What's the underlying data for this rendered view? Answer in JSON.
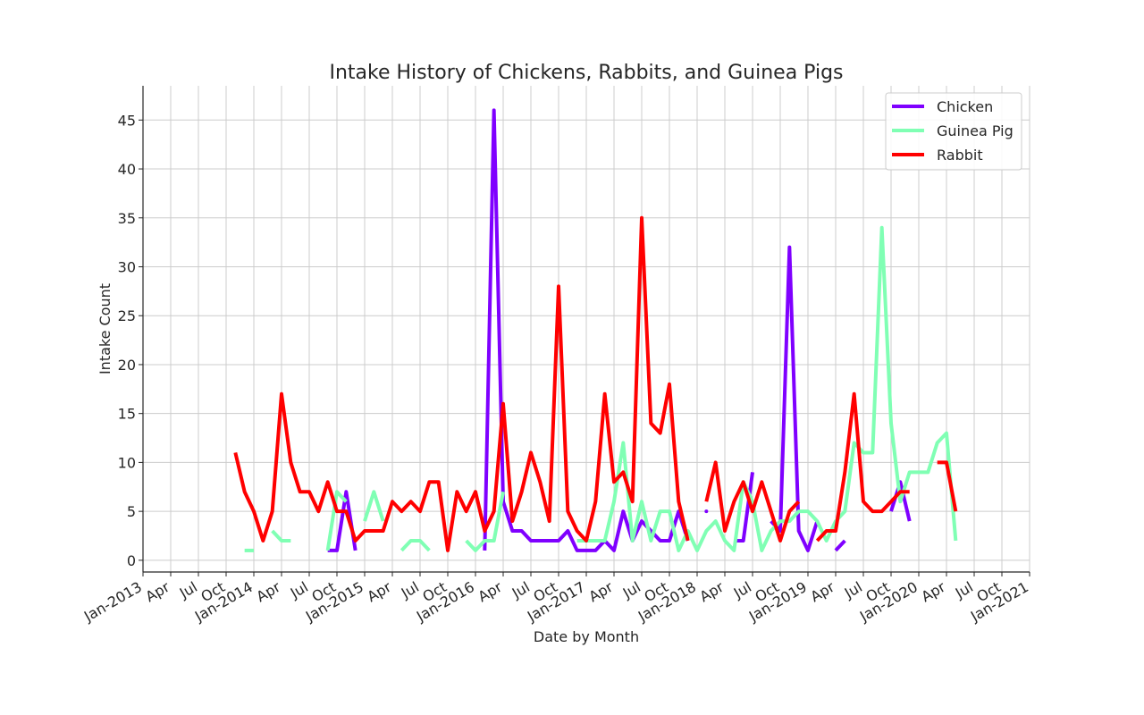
{
  "chart_data": {
    "type": "line",
    "title": "Intake History of Chickens, Rabbits, and Guinea Pigs",
    "xlabel": "Date by Month",
    "ylabel": "Intake Count",
    "x_range": [
      "2013-01",
      "2021-01"
    ],
    "ylim": [
      -1.2,
      48.5
    ],
    "y_ticks": [
      0,
      5,
      10,
      15,
      20,
      25,
      30,
      35,
      40,
      45
    ],
    "x_ticks": [
      {
        "date": "2013-01",
        "label": "Jan-2013"
      },
      {
        "date": "2013-04",
        "label": "Apr"
      },
      {
        "date": "2013-07",
        "label": "Jul"
      },
      {
        "date": "2013-10",
        "label": "Oct"
      },
      {
        "date": "2014-01",
        "label": "Jan-2014"
      },
      {
        "date": "2014-04",
        "label": "Apr"
      },
      {
        "date": "2014-07",
        "label": "Jul"
      },
      {
        "date": "2014-10",
        "label": "Oct"
      },
      {
        "date": "2015-01",
        "label": "Jan-2015"
      },
      {
        "date": "2015-04",
        "label": "Apr"
      },
      {
        "date": "2015-07",
        "label": "Jul"
      },
      {
        "date": "2015-10",
        "label": "Oct"
      },
      {
        "date": "2016-01",
        "label": "Jan-2016"
      },
      {
        "date": "2016-04",
        "label": "Apr"
      },
      {
        "date": "2016-07",
        "label": "Jul"
      },
      {
        "date": "2016-10",
        "label": "Oct"
      },
      {
        "date": "2017-01",
        "label": "Jan-2017"
      },
      {
        "date": "2017-04",
        "label": "Apr"
      },
      {
        "date": "2017-07",
        "label": "Jul"
      },
      {
        "date": "2017-10",
        "label": "Oct"
      },
      {
        "date": "2018-01",
        "label": "Jan-2018"
      },
      {
        "date": "2018-04",
        "label": "Apr"
      },
      {
        "date": "2018-07",
        "label": "Jul"
      },
      {
        "date": "2018-10",
        "label": "Oct"
      },
      {
        "date": "2019-01",
        "label": "Jan-2019"
      },
      {
        "date": "2019-04",
        "label": "Apr"
      },
      {
        "date": "2019-07",
        "label": "Jul"
      },
      {
        "date": "2019-10",
        "label": "Oct"
      },
      {
        "date": "2020-01",
        "label": "Jan-2020"
      },
      {
        "date": "2020-04",
        "label": "Apr"
      },
      {
        "date": "2020-07",
        "label": "Jul"
      },
      {
        "date": "2020-10",
        "label": "Oct"
      },
      {
        "date": "2021-01",
        "label": "Jan-2021"
      }
    ],
    "grid": true,
    "legend_position": "top-right",
    "series": [
      {
        "name": "Chicken",
        "color": "#7f00ff",
        "segments": [
          [
            [
              "2014-09",
              1
            ],
            [
              "2014-10",
              1
            ],
            [
              "2014-11",
              7
            ],
            [
              "2014-12",
              1
            ]
          ],
          [
            [
              "2016-02",
              1
            ],
            [
              "2016-03",
              46
            ],
            [
              "2016-04",
              6
            ],
            [
              "2016-05",
              3
            ],
            [
              "2016-06",
              3
            ],
            [
              "2016-07",
              2
            ],
            [
              "2016-08",
              2
            ],
            [
              "2016-09",
              2
            ],
            [
              "2016-10",
              2
            ],
            [
              "2016-11",
              3
            ],
            [
              "2016-12",
              1
            ],
            [
              "2017-01",
              1
            ],
            [
              "2017-02",
              1
            ],
            [
              "2017-03",
              2
            ],
            [
              "2017-04",
              1
            ],
            [
              "2017-05",
              5
            ],
            [
              "2017-06",
              2
            ],
            [
              "2017-07",
              4
            ],
            [
              "2017-08",
              3
            ],
            [
              "2017-09",
              2
            ],
            [
              "2017-10",
              2
            ],
            [
              "2017-11",
              5
            ],
            [
              "2017-12",
              2
            ]
          ],
          [
            [
              "2018-02",
              5
            ]
          ],
          [
            [
              "2018-05",
              2
            ],
            [
              "2018-06",
              2
            ],
            [
              "2018-07",
              9
            ]
          ],
          [
            [
              "2018-09",
              4
            ],
            [
              "2018-10",
              3
            ],
            [
              "2018-11",
              32
            ],
            [
              "2018-12",
              3
            ],
            [
              "2019-01",
              1
            ],
            [
              "2019-02",
              4
            ]
          ],
          [
            [
              "2019-04",
              1
            ],
            [
              "2019-05",
              2
            ]
          ],
          [
            [
              "2019-10",
              5
            ],
            [
              "2019-11",
              8
            ],
            [
              "2019-12",
              4
            ]
          ]
        ]
      },
      {
        "name": "Guinea Pig",
        "color": "#80ffb4",
        "segments": [
          [
            [
              "2013-12",
              1
            ],
            [
              "2014-01",
              1
            ]
          ],
          [
            [
              "2014-03",
              3
            ],
            [
              "2014-04",
              2
            ],
            [
              "2014-05",
              2
            ]
          ],
          [
            [
              "2014-09",
              1
            ],
            [
              "2014-10",
              7
            ],
            [
              "2014-11",
              6
            ]
          ],
          [
            [
              "2015-01",
              4
            ],
            [
              "2015-02",
              7
            ],
            [
              "2015-03",
              4
            ]
          ],
          [
            [
              "2015-05",
              1
            ],
            [
              "2015-06",
              2
            ],
            [
              "2015-07",
              2
            ],
            [
              "2015-08",
              1
            ]
          ],
          [
            [
              "2015-12",
              2
            ],
            [
              "2016-01",
              1
            ],
            [
              "2016-02",
              2
            ],
            [
              "2016-03",
              2
            ],
            [
              "2016-04",
              7
            ]
          ],
          [
            [
              "2016-12",
              2
            ],
            [
              "2017-01",
              2
            ],
            [
              "2017-02",
              2
            ],
            [
              "2017-03",
              2
            ],
            [
              "2017-04",
              6
            ],
            [
              "2017-05",
              12
            ],
            [
              "2017-06",
              2
            ],
            [
              "2017-07",
              6
            ],
            [
              "2017-08",
              2
            ],
            [
              "2017-09",
              5
            ],
            [
              "2017-10",
              5
            ],
            [
              "2017-11",
              1
            ],
            [
              "2017-12",
              3
            ],
            [
              "2018-01",
              1
            ],
            [
              "2018-02",
              3
            ],
            [
              "2018-03",
              4
            ],
            [
              "2018-04",
              2
            ],
            [
              "2018-05",
              1
            ],
            [
              "2018-06",
              8
            ],
            [
              "2018-07",
              6
            ],
            [
              "2018-08",
              1
            ],
            [
              "2018-09",
              3
            ],
            [
              "2018-10",
              4
            ],
            [
              "2018-11",
              4
            ],
            [
              "2018-12",
              5
            ],
            [
              "2019-01",
              5
            ],
            [
              "2019-02",
              4
            ],
            [
              "2019-03",
              2
            ],
            [
              "2019-04",
              4
            ],
            [
              "2019-05",
              5
            ],
            [
              "2019-06",
              12
            ],
            [
              "2019-07",
              11
            ],
            [
              "2019-08",
              11
            ],
            [
              "2019-09",
              34
            ],
            [
              "2019-10",
              14
            ],
            [
              "2019-11",
              6
            ],
            [
              "2019-12",
              9
            ],
            [
              "2020-01",
              9
            ],
            [
              "2020-02",
              9
            ],
            [
              "2020-03",
              12
            ],
            [
              "2020-04",
              13
            ],
            [
              "2020-05",
              2
            ]
          ]
        ]
      },
      {
        "name": "Rabbit",
        "color": "#ff0000",
        "segments": [
          [
            [
              "2013-11",
              11
            ],
            [
              "2013-12",
              7
            ],
            [
              "2014-01",
              5
            ],
            [
              "2014-02",
              2
            ],
            [
              "2014-03",
              5
            ],
            [
              "2014-04",
              17
            ],
            [
              "2014-05",
              10
            ],
            [
              "2014-06",
              7
            ],
            [
              "2014-07",
              7
            ],
            [
              "2014-08",
              5
            ],
            [
              "2014-09",
              8
            ],
            [
              "2014-10",
              5
            ],
            [
              "2014-11",
              5
            ],
            [
              "2014-12",
              2
            ],
            [
              "2015-01",
              3
            ],
            [
              "2015-02",
              3
            ],
            [
              "2015-03",
              3
            ],
            [
              "2015-04",
              6
            ],
            [
              "2015-05",
              5
            ],
            [
              "2015-06",
              6
            ],
            [
              "2015-07",
              5
            ],
            [
              "2015-08",
              8
            ],
            [
              "2015-09",
              8
            ],
            [
              "2015-10",
              1
            ],
            [
              "2015-11",
              7
            ],
            [
              "2015-12",
              5
            ],
            [
              "2016-01",
              7
            ],
            [
              "2016-02",
              3
            ],
            [
              "2016-03",
              5
            ],
            [
              "2016-04",
              16
            ],
            [
              "2016-05",
              4
            ],
            [
              "2016-06",
              7
            ],
            [
              "2016-07",
              11
            ],
            [
              "2016-08",
              8
            ],
            [
              "2016-09",
              4
            ],
            [
              "2016-10",
              28
            ],
            [
              "2016-11",
              5
            ],
            [
              "2016-12",
              3
            ],
            [
              "2017-01",
              2
            ],
            [
              "2017-02",
              6
            ],
            [
              "2017-03",
              17
            ],
            [
              "2017-04",
              8
            ],
            [
              "2017-05",
              9
            ],
            [
              "2017-06",
              6
            ],
            [
              "2017-07",
              35
            ],
            [
              "2017-08",
              14
            ],
            [
              "2017-09",
              13
            ],
            [
              "2017-10",
              18
            ],
            [
              "2017-11",
              6
            ],
            [
              "2017-12",
              2
            ]
          ],
          [
            [
              "2018-02",
              6
            ],
            [
              "2018-03",
              10
            ],
            [
              "2018-04",
              3
            ],
            [
              "2018-05",
              6
            ],
            [
              "2018-06",
              8
            ],
            [
              "2018-07",
              5
            ],
            [
              "2018-08",
              8
            ],
            [
              "2018-09",
              5
            ],
            [
              "2018-10",
              2
            ],
            [
              "2018-11",
              5
            ],
            [
              "2018-12",
              6
            ]
          ],
          [
            [
              "2019-02",
              2
            ],
            [
              "2019-03",
              3
            ],
            [
              "2019-04",
              3
            ],
            [
              "2019-05",
              9
            ],
            [
              "2019-06",
              17
            ],
            [
              "2019-07",
              6
            ],
            [
              "2019-08",
              5
            ],
            [
              "2019-09",
              5
            ],
            [
              "2019-10",
              6
            ],
            [
              "2019-11",
              7
            ],
            [
              "2019-12",
              7
            ]
          ],
          [
            [
              "2020-03",
              10
            ],
            [
              "2020-04",
              10
            ],
            [
              "2020-05",
              5
            ]
          ]
        ]
      }
    ]
  }
}
